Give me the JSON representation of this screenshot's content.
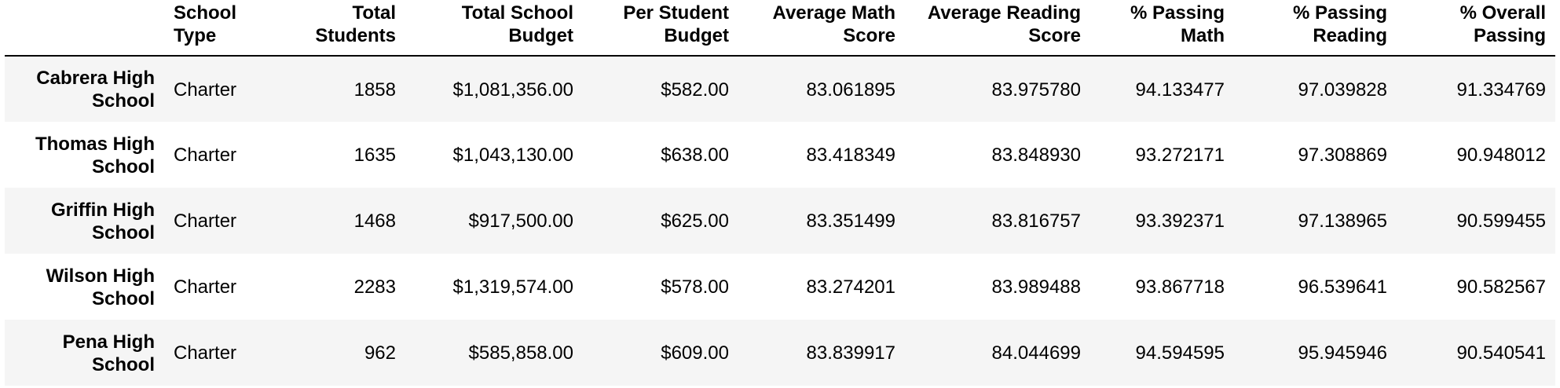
{
  "table": {
    "columns": [
      "",
      "School Type",
      "Total Students",
      "Total School Budget",
      "Per Student Budget",
      "Average Math Score",
      "Average Reading Score",
      "% Passing Math",
      "% Passing Reading",
      "% Overall Passing"
    ],
    "rows": [
      {
        "name": "Cabrera High School",
        "type": "Charter",
        "total_students": "1858",
        "total_budget": "$1,081,356.00",
        "per_student_budget": "$582.00",
        "avg_math": "83.061895",
        "avg_reading": "83.975780",
        "pct_math": "94.133477",
        "pct_reading": "97.039828",
        "pct_overall": "91.334769"
      },
      {
        "name": "Thomas High School",
        "type": "Charter",
        "total_students": "1635",
        "total_budget": "$1,043,130.00",
        "per_student_budget": "$638.00",
        "avg_math": "83.418349",
        "avg_reading": "83.848930",
        "pct_math": "93.272171",
        "pct_reading": "97.308869",
        "pct_overall": "90.948012"
      },
      {
        "name": "Griffin High School",
        "type": "Charter",
        "total_students": "1468",
        "total_budget": "$917,500.00",
        "per_student_budget": "$625.00",
        "avg_math": "83.351499",
        "avg_reading": "83.816757",
        "pct_math": "93.392371",
        "pct_reading": "97.138965",
        "pct_overall": "90.599455"
      },
      {
        "name": "Wilson High School",
        "type": "Charter",
        "total_students": "2283",
        "total_budget": "$1,319,574.00",
        "per_student_budget": "$578.00",
        "avg_math": "83.274201",
        "avg_reading": "83.989488",
        "pct_math": "93.867718",
        "pct_reading": "96.539641",
        "pct_overall": "90.582567"
      },
      {
        "name": "Pena High School",
        "type": "Charter",
        "total_students": "962",
        "total_budget": "$585,858.00",
        "per_student_budget": "$609.00",
        "avg_math": "83.839917",
        "avg_reading": "84.044699",
        "pct_math": "94.594595",
        "pct_reading": "95.945946",
        "pct_overall": "90.540541"
      }
    ]
  }
}
